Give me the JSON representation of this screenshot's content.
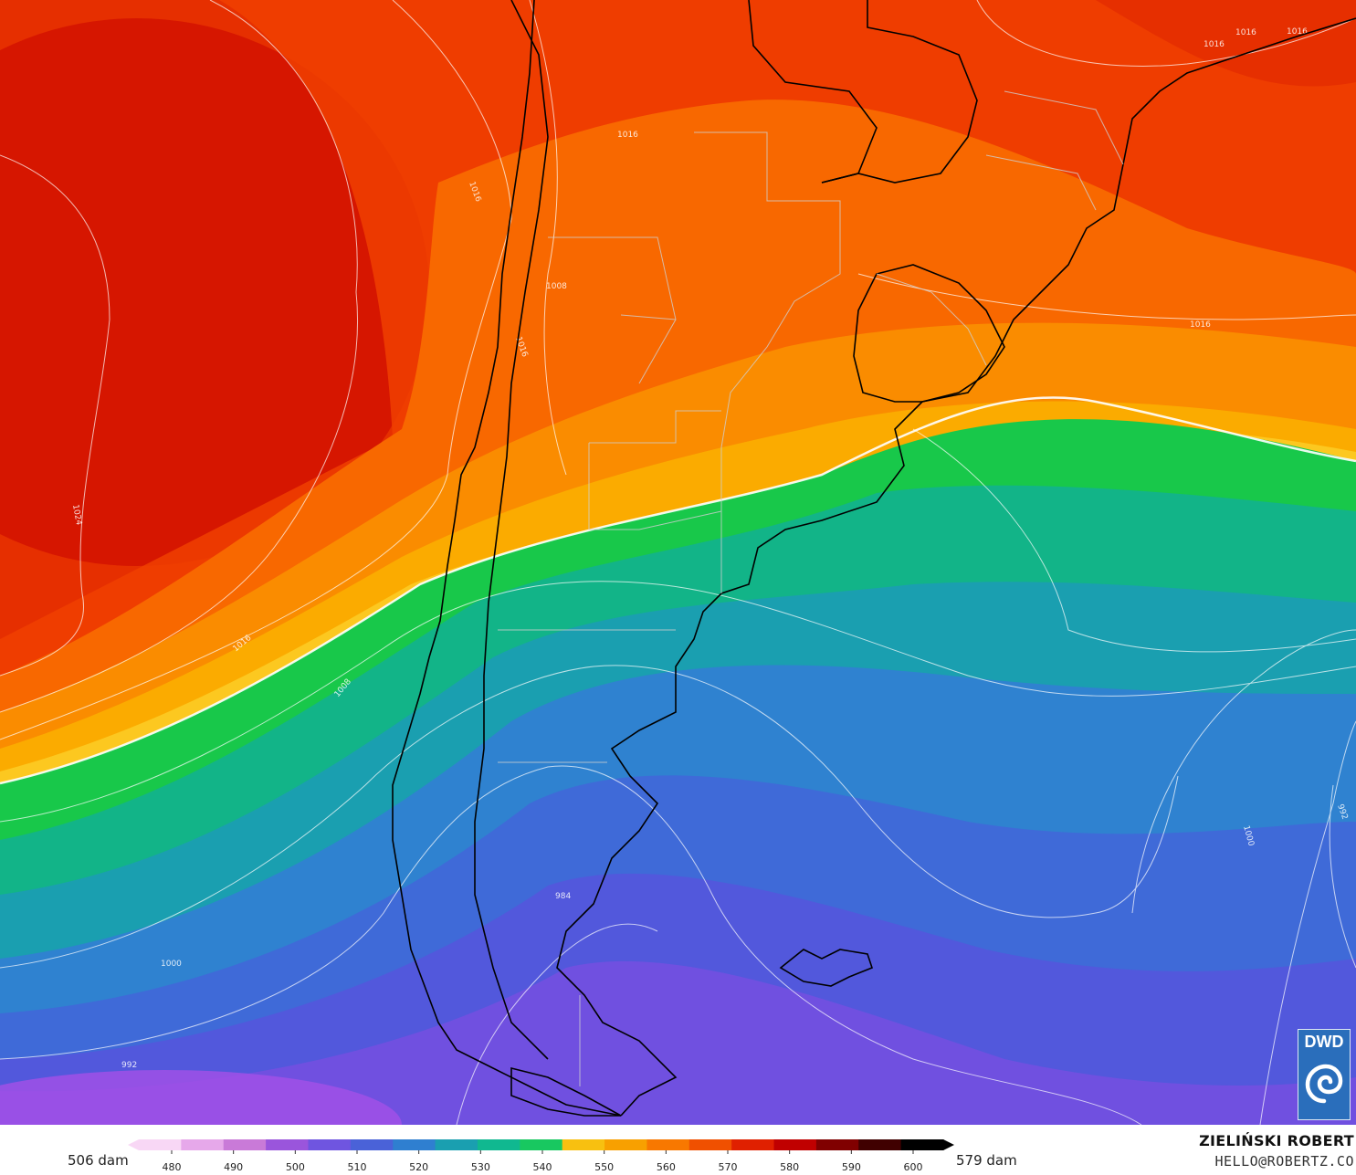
{
  "legend": {
    "min_label": "506 dam",
    "max_label": "579 dam",
    "ticks": [
      "480",
      "490",
      "500",
      "510",
      "520",
      "530",
      "540",
      "550",
      "560",
      "570",
      "580",
      "590",
      "600"
    ],
    "colors": [
      "#f8d7f5",
      "#e6a8ea",
      "#c97ad8",
      "#9a55dc",
      "#6f55e0",
      "#4a62d8",
      "#2f7fd0",
      "#1a9fb0",
      "#10b890",
      "#18c860",
      "#f8c010",
      "#f8a000",
      "#f87800",
      "#f05000",
      "#e02000",
      "#c00000",
      "#800000",
      "#400000",
      "#000000"
    ]
  },
  "credit": {
    "author": "ZIELIŃSKI ROBERT",
    "email": "HELLO@ROBERTZ.CO"
  },
  "logo": {
    "text": "DWD",
    "color": "#2a6ebb"
  },
  "isobar_labels": [
    "1016",
    "1016",
    "1016",
    "1016",
    "1016",
    "1016",
    "1024",
    "1016",
    "1008",
    "1008",
    "1016",
    "992",
    "1000",
    "992",
    "1000",
    "984",
    "1000",
    "992"
  ]
}
